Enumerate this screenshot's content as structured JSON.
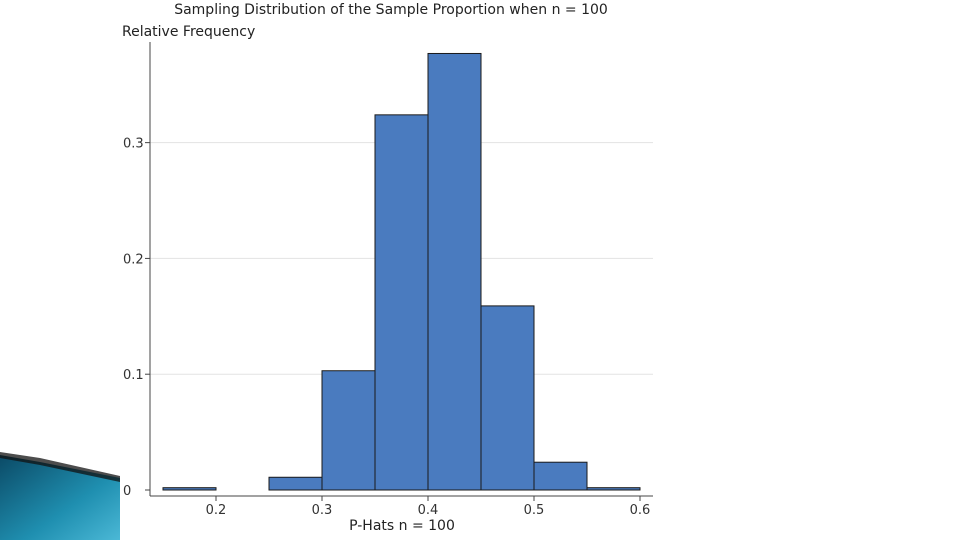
{
  "chart_data": {
    "type": "bar",
    "title": "Sampling Distribution of the Sample Proportion when n = 100",
    "ylabel": "Relative Frequency",
    "xlabel": "P-Hats n = 100",
    "bin_edges": [
      0.15,
      0.2,
      0.25,
      0.3,
      0.35,
      0.4,
      0.45,
      0.5,
      0.55,
      0.6
    ],
    "values": [
      0.002,
      0,
      0.011,
      0.103,
      0.324,
      0.377,
      0.159,
      0.024,
      0.002
    ],
    "xlim": [
      0.15,
      0.6
    ],
    "ylim": [
      0,
      0.38
    ],
    "xticks": [
      0.2,
      0.3,
      0.4,
      0.5,
      0.6
    ],
    "xtick_labels": [
      "0.2",
      "0.3",
      "0.4",
      "0.5",
      "0.6"
    ],
    "yticks": [
      0,
      0.1,
      0.2,
      0.3
    ],
    "ytick_labels": [
      "0",
      "0.1",
      "0.2",
      "0.3"
    ],
    "grid": true,
    "bar_color": "#4a7bbf",
    "edge_color": "#1a1a1a"
  },
  "decoration": {
    "colors": [
      "#0b4a66",
      "#1f8fb0",
      "#4bb8d6"
    ]
  }
}
